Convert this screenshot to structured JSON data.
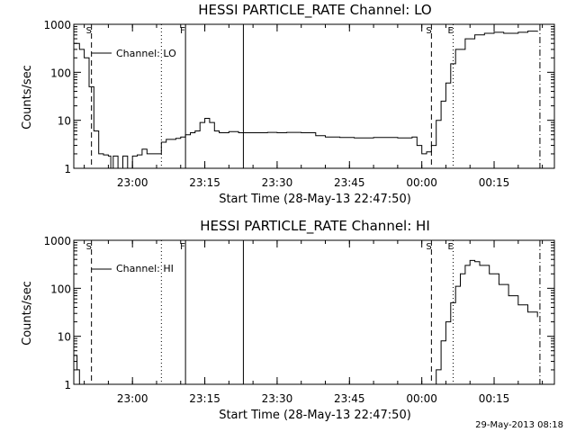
{
  "colors": {
    "background": "#ffffff",
    "foreground": "#000000"
  },
  "footer_timestamp": "29-May-2013 08:18",
  "chart_data": [
    {
      "type": "line",
      "title": "HESSI PARTICLE_RATE Channel: LO",
      "xlabel": "Start Time (28-May-13 22:47:50)",
      "ylabel": "Counts/sec",
      "yscale": "log",
      "ylim": [
        1,
        1000
      ],
      "xlim": [
        "22:47:50",
        "00:27:30"
      ],
      "x_ticks": [
        "23:00",
        "23:15",
        "23:30",
        "23:45",
        "00:00",
        "00:15"
      ],
      "y_ticks": [
        "1",
        "10",
        "100",
        "1000"
      ],
      "legend": {
        "position": "top-left",
        "entries": [
          "Channel: LO"
        ]
      },
      "markers": [
        {
          "label": "S",
          "time": "22:51:30",
          "style": "dashed"
        },
        {
          "label": "",
          "time": "23:06:00",
          "style": "dotted"
        },
        {
          "label": "F",
          "time": "23:11:00",
          "style": "solid"
        },
        {
          "label": "",
          "time": "23:23:00",
          "style": "solid"
        },
        {
          "label": "S",
          "time": "00:02:00",
          "style": "dashed"
        },
        {
          "label": "E",
          "time": "00:06:30",
          "style": "dotted"
        },
        {
          "label": "",
          "time": "00:24:30",
          "style": "dashdot"
        }
      ],
      "series": [
        {
          "name": "Channel: LO",
          "points": [
            [
              "22:47:50",
              400
            ],
            [
              "22:49:00",
              300
            ],
            [
              "22:50:00",
              200
            ],
            [
              "22:51:00",
              50
            ],
            [
              "22:52:00",
              6
            ],
            [
              "22:53:00",
              2
            ],
            [
              "22:54:00",
              1.9
            ],
            [
              "22:55:00",
              1.8
            ],
            [
              "22:55:30",
              1
            ],
            [
              "22:56:00",
              1.8
            ],
            [
              "22:57:00",
              1
            ],
            [
              "22:58:00",
              1.8
            ],
            [
              "22:59:00",
              1
            ],
            [
              "23:00:00",
              1.8
            ],
            [
              "23:01:00",
              1.9
            ],
            [
              "23:02:00",
              2.5
            ],
            [
              "23:03:00",
              2
            ],
            [
              "23:04:00",
              2
            ],
            [
              "23:05:00",
              2
            ],
            [
              "23:06:00",
              3.5
            ],
            [
              "23:07:00",
              4
            ],
            [
              "23:08:00",
              4
            ],
            [
              "23:09:00",
              4.2
            ],
            [
              "23:10:00",
              4.5
            ],
            [
              "23:11:00",
              5
            ],
            [
              "23:12:00",
              5.5
            ],
            [
              "23:13:00",
              6
            ],
            [
              "23:14:00",
              9
            ],
            [
              "23:15:00",
              11
            ],
            [
              "23:16:00",
              9
            ],
            [
              "23:17:00",
              6
            ],
            [
              "23:18:00",
              5.5
            ],
            [
              "23:20:00",
              5.8
            ],
            [
              "23:22:00",
              5.5
            ],
            [
              "23:25:00",
              5.5
            ],
            [
              "23:28:00",
              5.6
            ],
            [
              "23:30:00",
              5.5
            ],
            [
              "23:32:00",
              5.6
            ],
            [
              "23:35:00",
              5.5
            ],
            [
              "23:38:00",
              4.8
            ],
            [
              "23:40:00",
              4.5
            ],
            [
              "23:43:00",
              4.4
            ],
            [
              "23:46:00",
              4.3
            ],
            [
              "23:50:00",
              4.4
            ],
            [
              "23:55:00",
              4.3
            ],
            [
              "23:58:00",
              4.5
            ],
            [
              "23:59:00",
              3
            ],
            [
              "00:00:00",
              2
            ],
            [
              "00:01:00",
              2.2
            ],
            [
              "00:02:00",
              3
            ],
            [
              "00:03:00",
              10
            ],
            [
              "00:04:00",
              25
            ],
            [
              "00:05:00",
              60
            ],
            [
              "00:06:00",
              150
            ],
            [
              "00:07:00",
              300
            ],
            [
              "00:09:00",
              500
            ],
            [
              "00:11:00",
              600
            ],
            [
              "00:13:00",
              650
            ],
            [
              "00:15:00",
              680
            ],
            [
              "00:17:00",
              650
            ],
            [
              "00:20:00",
              680
            ],
            [
              "00:22:00",
              720
            ],
            [
              "00:24:00",
              700
            ]
          ]
        }
      ]
    },
    {
      "type": "line",
      "title": "HESSI PARTICLE_RATE Channel: HI",
      "xlabel": "Start Time (28-May-13 22:47:50)",
      "ylabel": "Counts/sec",
      "yscale": "log",
      "ylim": [
        1,
        1000
      ],
      "xlim": [
        "22:47:50",
        "00:27:30"
      ],
      "x_ticks": [
        "23:00",
        "23:15",
        "23:30",
        "23:45",
        "00:00",
        "00:15"
      ],
      "y_ticks": [
        "1",
        "10",
        "100",
        "1000"
      ],
      "legend": {
        "position": "top-left",
        "entries": [
          "Channel: HI"
        ]
      },
      "markers": [
        {
          "label": "S",
          "time": "22:51:30",
          "style": "dashed"
        },
        {
          "label": "",
          "time": "23:06:00",
          "style": "dotted"
        },
        {
          "label": "F",
          "time": "23:11:00",
          "style": "solid"
        },
        {
          "label": "",
          "time": "23:23:00",
          "style": "solid"
        },
        {
          "label": "S",
          "time": "00:02:00",
          "style": "dashed"
        },
        {
          "label": "E",
          "time": "00:06:30",
          "style": "dotted"
        },
        {
          "label": "",
          "time": "00:24:30",
          "style": "dashdot"
        }
      ],
      "series": [
        {
          "name": "Channel: HI",
          "points": [
            [
              "22:47:50",
              4
            ],
            [
              "22:48:30",
              2
            ],
            [
              "22:49:00",
              1
            ],
            [
              "00:02:00",
              1
            ],
            [
              "00:03:00",
              2
            ],
            [
              "00:04:00",
              8
            ],
            [
              "00:05:00",
              20
            ],
            [
              "00:06:00",
              50
            ],
            [
              "00:07:00",
              110
            ],
            [
              "00:08:00",
              200
            ],
            [
              "00:09:00",
              300
            ],
            [
              "00:10:00",
              380
            ],
            [
              "00:11:00",
              360
            ],
            [
              "00:12:00",
              300
            ],
            [
              "00:14:00",
              200
            ],
            [
              "00:16:00",
              120
            ],
            [
              "00:18:00",
              70
            ],
            [
              "00:20:00",
              45
            ],
            [
              "00:22:00",
              32
            ],
            [
              "00:24:00",
              25
            ]
          ]
        }
      ]
    }
  ]
}
